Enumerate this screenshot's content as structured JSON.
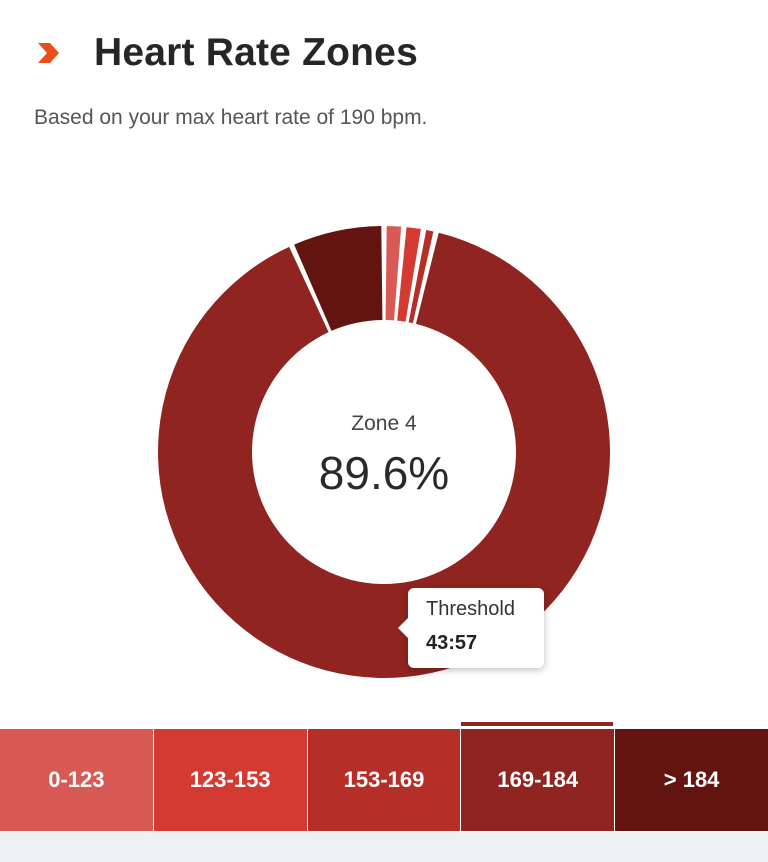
{
  "header": {
    "title": "Heart Rate Zones",
    "subtitle": "Based on your max heart rate of 190 bpm."
  },
  "center": {
    "label": "Zone 4",
    "value": "89.6%"
  },
  "tooltip": {
    "name": "Threshold",
    "time": "43:57"
  },
  "colors": {
    "accent": "#e8501b",
    "zone1": "#d95a55",
    "zone2": "#d33a32",
    "zone3": "#b52f28",
    "zone4": "#8f2420",
    "zone5": "#631410"
  },
  "chart_data": {
    "type": "pie",
    "series": [
      {
        "values": [
          1.4,
          1.4,
          0.9,
          89.6,
          6.7
        ]
      }
    ],
    "categories": [
      "0-123",
      "123-153",
      "153-169",
      "169-184",
      "> 184"
    ],
    "highlight_index": 3
  },
  "zones": [
    {
      "label": "0-123",
      "color": "#d95a55"
    },
    {
      "label": "123-153",
      "color": "#d33a32"
    },
    {
      "label": "153-169",
      "color": "#b52f28"
    },
    {
      "label": "169-184",
      "color": "#8f2420"
    },
    {
      "label": "> 184",
      "color": "#631410"
    }
  ]
}
